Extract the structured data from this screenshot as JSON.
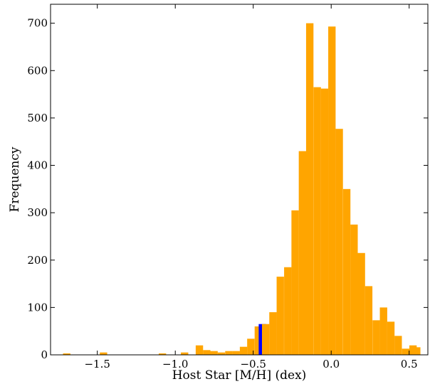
{
  "chart_data": {
    "type": "bar",
    "title": "",
    "xlabel": "Host Star [M/H] (dex)",
    "ylabel": "Frequency",
    "xlim": [
      -1.8,
      0.62
    ],
    "ylim": [
      0,
      740
    ],
    "x_ticks": [
      -1.5,
      -1.0,
      -0.5,
      0.0,
      0.5
    ],
    "x_tick_labels": [
      "−1.5",
      "−1.0",
      "−0.5",
      "0.0",
      "0.5"
    ],
    "y_ticks": [
      0,
      100,
      200,
      300,
      400,
      500,
      600,
      700
    ],
    "y_tick_labels": [
      "0",
      "100",
      "200",
      "300",
      "400",
      "500",
      "600",
      "700"
    ],
    "grid": false,
    "bin_width": 0.0473,
    "bins": [
      {
        "x0": -1.72,
        "value": 3,
        "color": "#ffa500"
      },
      {
        "x0": -1.484,
        "value": 5,
        "color": "#ffa500"
      },
      {
        "x0": -1.106,
        "value": 3,
        "color": "#ffa500"
      },
      {
        "x0": -0.964,
        "value": 5,
        "color": "#ffa500"
      },
      {
        "x0": -0.869,
        "value": 20,
        "color": "#ffa500"
      },
      {
        "x0": -0.822,
        "value": 10,
        "color": "#ffa500"
      },
      {
        "x0": -0.775,
        "value": 8,
        "color": "#ffa500"
      },
      {
        "x0": -0.728,
        "value": 5,
        "color": "#ffa500"
      },
      {
        "x0": -0.68,
        "value": 8,
        "color": "#ffa500"
      },
      {
        "x0": -0.633,
        "value": 8,
        "color": "#ffa500"
      },
      {
        "x0": -0.586,
        "value": 17,
        "color": "#ffa500"
      },
      {
        "x0": -0.539,
        "value": 34,
        "color": "#ffa500"
      },
      {
        "x0": -0.491,
        "value": 60,
        "color": "#ffa500"
      },
      {
        "x0": -0.465,
        "value": 65,
        "color": "#0000ff"
      },
      {
        "x0": -0.444,
        "value": 65,
        "color": "#ffa500"
      },
      {
        "x0": -0.397,
        "value": 90,
        "color": "#ffa500"
      },
      {
        "x0": -0.35,
        "value": 165,
        "color": "#ffa500"
      },
      {
        "x0": -0.302,
        "value": 185,
        "color": "#ffa500"
      },
      {
        "x0": -0.255,
        "value": 305,
        "color": "#ffa500"
      },
      {
        "x0": -0.208,
        "value": 430,
        "color": "#ffa500"
      },
      {
        "x0": -0.161,
        "value": 700,
        "color": "#ffa500"
      },
      {
        "x0": -0.113,
        "value": 565,
        "color": "#ffa500"
      },
      {
        "x0": -0.066,
        "value": 562,
        "color": "#ffa500"
      },
      {
        "x0": -0.019,
        "value": 693,
        "color": "#ffa500"
      },
      {
        "x0": 0.028,
        "value": 477,
        "color": "#ffa500"
      },
      {
        "x0": 0.076,
        "value": 350,
        "color": "#ffa500"
      },
      {
        "x0": 0.123,
        "value": 275,
        "color": "#ffa500"
      },
      {
        "x0": 0.17,
        "value": 215,
        "color": "#ffa500"
      },
      {
        "x0": 0.217,
        "value": 145,
        "color": "#ffa500"
      },
      {
        "x0": 0.265,
        "value": 73,
        "color": "#ffa500"
      },
      {
        "x0": 0.312,
        "value": 100,
        "color": "#ffa500"
      },
      {
        "x0": 0.359,
        "value": 70,
        "color": "#ffa500"
      },
      {
        "x0": 0.406,
        "value": 40,
        "color": "#ffa500"
      },
      {
        "x0": 0.454,
        "value": 13,
        "color": "#ffa500"
      },
      {
        "x0": 0.501,
        "value": 20,
        "color": "#ffa500"
      },
      {
        "x0": 0.525,
        "value": 16,
        "color": "#ffa500"
      }
    ]
  }
}
